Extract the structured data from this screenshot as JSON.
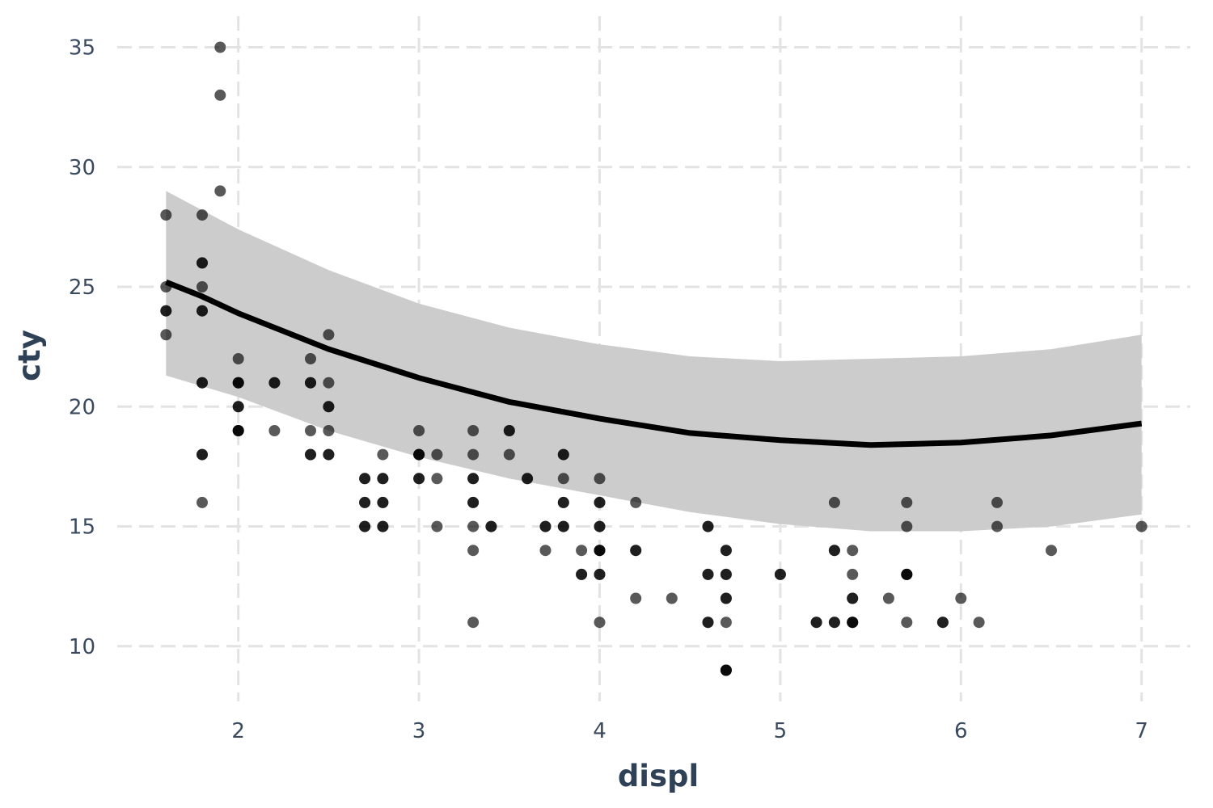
{
  "chart_data": {
    "type": "scatter",
    "title": "",
    "xlabel": "displ",
    "ylabel": "cty",
    "xlim": [
      1.33,
      7.27
    ],
    "ylim": [
      7.7,
      36.3
    ],
    "xticks": [
      2,
      3,
      4,
      5,
      6,
      7
    ],
    "yticks": [
      10,
      15,
      20,
      25,
      30,
      35
    ],
    "xtick_labels": [
      "2",
      "3",
      "4",
      "5",
      "6",
      "7"
    ],
    "ytick_labels": [
      "10",
      "15",
      "20",
      "25",
      "30",
      "35"
    ],
    "grid": true,
    "legend": "none",
    "colors": {
      "points": "#000000",
      "fit": "#000000",
      "band": "#cccccc",
      "grid": "#e3e3e3",
      "text": "#2f4156"
    },
    "points": [
      [
        1.6,
        28
      ],
      [
        1.6,
        25
      ],
      [
        1.6,
        24
      ],
      [
        1.6,
        24
      ],
      [
        1.6,
        23
      ],
      [
        1.8,
        28
      ],
      [
        1.8,
        26
      ],
      [
        1.8,
        26
      ],
      [
        1.8,
        25
      ],
      [
        1.8,
        24
      ],
      [
        1.8,
        24
      ],
      [
        1.8,
        21
      ],
      [
        1.8,
        21
      ],
      [
        1.8,
        18
      ],
      [
        1.8,
        18
      ],
      [
        1.8,
        16
      ],
      [
        1.9,
        35
      ],
      [
        1.9,
        33
      ],
      [
        1.9,
        29
      ],
      [
        2.0,
        22
      ],
      [
        2.0,
        21
      ],
      [
        2.0,
        21
      ],
      [
        2.0,
        21
      ],
      [
        2.0,
        20
      ],
      [
        2.0,
        20
      ],
      [
        2.0,
        19
      ],
      [
        2.0,
        19
      ],
      [
        2.0,
        19
      ],
      [
        2.2,
        21
      ],
      [
        2.2,
        21
      ],
      [
        2.2,
        19
      ],
      [
        2.4,
        22
      ],
      [
        2.4,
        21
      ],
      [
        2.4,
        21
      ],
      [
        2.4,
        19
      ],
      [
        2.4,
        18
      ],
      [
        2.4,
        18
      ],
      [
        2.5,
        23
      ],
      [
        2.5,
        21
      ],
      [
        2.5,
        20
      ],
      [
        2.5,
        20
      ],
      [
        2.5,
        19
      ],
      [
        2.5,
        18
      ],
      [
        2.5,
        18
      ],
      [
        2.7,
        17
      ],
      [
        2.7,
        17
      ],
      [
        2.7,
        16
      ],
      [
        2.7,
        16
      ],
      [
        2.7,
        15
      ],
      [
        2.7,
        15
      ],
      [
        2.8,
        18
      ],
      [
        2.8,
        17
      ],
      [
        2.8,
        17
      ],
      [
        2.8,
        16
      ],
      [
        2.8,
        16
      ],
      [
        2.8,
        15
      ],
      [
        2.8,
        15
      ],
      [
        3.0,
        19
      ],
      [
        3.0,
        18
      ],
      [
        3.0,
        18
      ],
      [
        3.0,
        18
      ],
      [
        3.0,
        17
      ],
      [
        3.0,
        17
      ],
      [
        3.1,
        18
      ],
      [
        3.1,
        17
      ],
      [
        3.1,
        15
      ],
      [
        3.3,
        19
      ],
      [
        3.3,
        18
      ],
      [
        3.3,
        17
      ],
      [
        3.3,
        17
      ],
      [
        3.3,
        16
      ],
      [
        3.3,
        16
      ],
      [
        3.3,
        15
      ],
      [
        3.3,
        14
      ],
      [
        3.3,
        11
      ],
      [
        3.4,
        15
      ],
      [
        3.4,
        15
      ],
      [
        3.5,
        19
      ],
      [
        3.5,
        19
      ],
      [
        3.5,
        18
      ],
      [
        3.6,
        17
      ],
      [
        3.6,
        17
      ],
      [
        3.7,
        15
      ],
      [
        3.7,
        15
      ],
      [
        3.7,
        14
      ],
      [
        3.8,
        18
      ],
      [
        3.8,
        18
      ],
      [
        3.8,
        17
      ],
      [
        3.8,
        16
      ],
      [
        3.8,
        16
      ],
      [
        3.8,
        15
      ],
      [
        3.8,
        15
      ],
      [
        3.9,
        14
      ],
      [
        3.9,
        13
      ],
      [
        3.9,
        13
      ],
      [
        4.0,
        17
      ],
      [
        4.0,
        16
      ],
      [
        4.0,
        16
      ],
      [
        4.0,
        15
      ],
      [
        4.0,
        15
      ],
      [
        4.0,
        14
      ],
      [
        4.0,
        14
      ],
      [
        4.0,
        14
      ],
      [
        4.0,
        13
      ],
      [
        4.0,
        13
      ],
      [
        4.0,
        11
      ],
      [
        4.2,
        16
      ],
      [
        4.2,
        14
      ],
      [
        4.2,
        14
      ],
      [
        4.2,
        12
      ],
      [
        4.4,
        12
      ],
      [
        4.6,
        15
      ],
      [
        4.6,
        15
      ],
      [
        4.6,
        13
      ],
      [
        4.6,
        13
      ],
      [
        4.6,
        11
      ],
      [
        4.6,
        11
      ],
      [
        4.7,
        14
      ],
      [
        4.7,
        14
      ],
      [
        4.7,
        13
      ],
      [
        4.7,
        13
      ],
      [
        4.7,
        12
      ],
      [
        4.7,
        12
      ],
      [
        4.7,
        11
      ],
      [
        4.7,
        9
      ],
      [
        4.7,
        9
      ],
      [
        4.7,
        9
      ],
      [
        5.0,
        13
      ],
      [
        5.0,
        13
      ],
      [
        5.2,
        11
      ],
      [
        5.2,
        11
      ],
      [
        5.3,
        16
      ],
      [
        5.3,
        14
      ],
      [
        5.3,
        14
      ],
      [
        5.3,
        11
      ],
      [
        5.3,
        11
      ],
      [
        5.4,
        14
      ],
      [
        5.4,
        13
      ],
      [
        5.4,
        12
      ],
      [
        5.4,
        12
      ],
      [
        5.4,
        11
      ],
      [
        5.4,
        11
      ],
      [
        5.4,
        11
      ],
      [
        5.6,
        12
      ],
      [
        5.7,
        16
      ],
      [
        5.7,
        15
      ],
      [
        5.7,
        13
      ],
      [
        5.7,
        13
      ],
      [
        5.7,
        13
      ],
      [
        5.7,
        11
      ],
      [
        5.9,
        11
      ],
      [
        5.9,
        11
      ],
      [
        6.0,
        12
      ],
      [
        6.1,
        11
      ],
      [
        6.2,
        16
      ],
      [
        6.2,
        15
      ],
      [
        6.5,
        14
      ],
      [
        7.0,
        15
      ]
    ],
    "fit": {
      "x": [
        1.6,
        1.8,
        2.0,
        2.5,
        3.0,
        3.5,
        4.0,
        4.5,
        5.0,
        5.5,
        6.0,
        6.5,
        7.0
      ],
      "y": [
        25.2,
        24.6,
        23.9,
        22.4,
        21.2,
        20.2,
        19.5,
        18.9,
        18.6,
        18.4,
        18.5,
        18.8,
        19.3
      ]
    },
    "band": {
      "x": [
        1.6,
        2.0,
        2.5,
        3.0,
        3.5,
        4.0,
        4.5,
        5.0,
        5.5,
        6.0,
        6.5,
        7.0
      ],
      "upper": [
        29.0,
        27.4,
        25.7,
        24.3,
        23.3,
        22.6,
        22.1,
        21.9,
        22.0,
        22.1,
        22.4,
        23.0
      ],
      "lower": [
        21.3,
        20.4,
        19.0,
        17.9,
        17.0,
        16.3,
        15.6,
        15.1,
        14.8,
        14.8,
        15.0,
        15.5
      ]
    }
  }
}
